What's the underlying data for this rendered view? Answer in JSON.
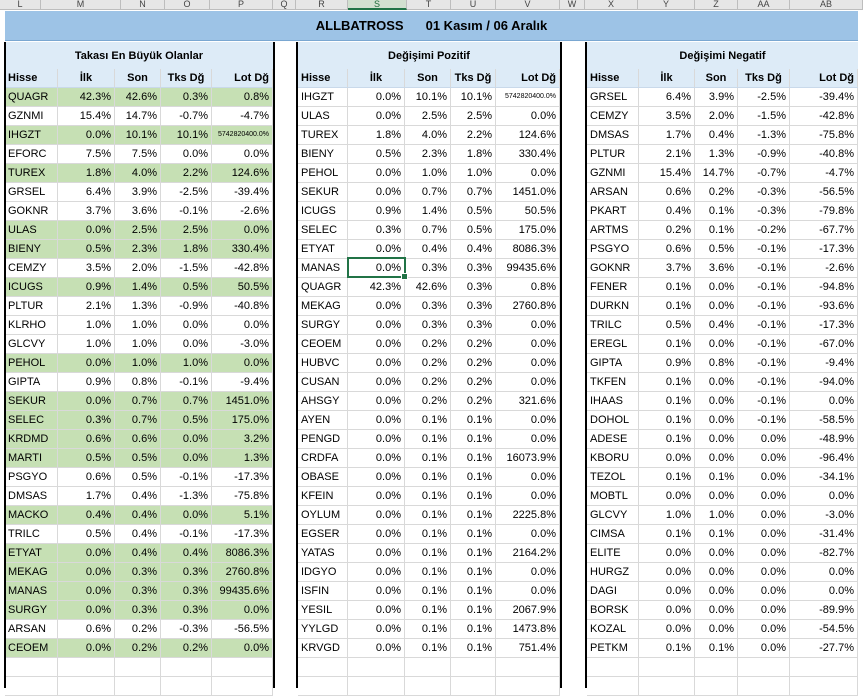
{
  "column_headers": [
    "L",
    "M",
    "N",
    "O",
    "P",
    "Q",
    "R",
    "S",
    "T",
    "U",
    "V",
    "W",
    "X",
    "Y",
    "Z",
    "AA",
    "AB"
  ],
  "selected_column": "S",
  "title": {
    "name": "ALLBATROSS",
    "period": "01 Kasım / 06 Aralık"
  },
  "headers": {
    "hisse": "Hisse",
    "ilk": "İlk",
    "son": "Son",
    "tks": "Tks Dğ",
    "lot": "Lot  Dğ"
  },
  "panels": [
    {
      "title": "Takası En Büyük Olanlar",
      "rows": [
        {
          "h": "QUAGR",
          "ilk": "42.3%",
          "son": "42.6%",
          "tks": "0.3%",
          "lot": "0.8%",
          "green": true
        },
        {
          "h": "GZNMI",
          "ilk": "15.4%",
          "son": "14.7%",
          "tks": "-0.7%",
          "lot": "-4.7%",
          "green": false
        },
        {
          "h": "IHGZT",
          "ilk": "0.0%",
          "son": "10.1%",
          "tks": "10.1%",
          "lot": "5742820400.0%",
          "green": true
        },
        {
          "h": "EFORC",
          "ilk": "7.5%",
          "son": "7.5%",
          "tks": "0.0%",
          "lot": "0.0%",
          "green": false
        },
        {
          "h": "TUREX",
          "ilk": "1.8%",
          "son": "4.0%",
          "tks": "2.2%",
          "lot": "124.6%",
          "green": true
        },
        {
          "h": "GRSEL",
          "ilk": "6.4%",
          "son": "3.9%",
          "tks": "-2.5%",
          "lot": "-39.4%",
          "green": false
        },
        {
          "h": "GOKNR",
          "ilk": "3.7%",
          "son": "3.6%",
          "tks": "-0.1%",
          "lot": "-2.6%",
          "green": false
        },
        {
          "h": "ULAS",
          "ilk": "0.0%",
          "son": "2.5%",
          "tks": "2.5%",
          "lot": "0.0%",
          "green": true
        },
        {
          "h": "BIENY",
          "ilk": "0.5%",
          "son": "2.3%",
          "tks": "1.8%",
          "lot": "330.4%",
          "green": true
        },
        {
          "h": "CEMZY",
          "ilk": "3.5%",
          "son": "2.0%",
          "tks": "-1.5%",
          "lot": "-42.8%",
          "green": false
        },
        {
          "h": "ICUGS",
          "ilk": "0.9%",
          "son": "1.4%",
          "tks": "0.5%",
          "lot": "50.5%",
          "green": true
        },
        {
          "h": "PLTUR",
          "ilk": "2.1%",
          "son": "1.3%",
          "tks": "-0.9%",
          "lot": "-40.8%",
          "green": false
        },
        {
          "h": "KLRHO",
          "ilk": "1.0%",
          "son": "1.0%",
          "tks": "0.0%",
          "lot": "0.0%",
          "green": false
        },
        {
          "h": "GLCVY",
          "ilk": "1.0%",
          "son": "1.0%",
          "tks": "0.0%",
          "lot": "-3.0%",
          "green": false
        },
        {
          "h": "PEHOL",
          "ilk": "0.0%",
          "son": "1.0%",
          "tks": "1.0%",
          "lot": "0.0%",
          "green": true
        },
        {
          "h": "GIPTA",
          "ilk": "0.9%",
          "son": "0.8%",
          "tks": "-0.1%",
          "lot": "-9.4%",
          "green": false
        },
        {
          "h": "SEKUR",
          "ilk": "0.0%",
          "son": "0.7%",
          "tks": "0.7%",
          "lot": "1451.0%",
          "green": true
        },
        {
          "h": "SELEC",
          "ilk": "0.3%",
          "son": "0.7%",
          "tks": "0.5%",
          "lot": "175.0%",
          "green": true
        },
        {
          "h": "KRDMD",
          "ilk": "0.6%",
          "son": "0.6%",
          "tks": "0.0%",
          "lot": "3.2%",
          "green": true
        },
        {
          "h": "MARTI",
          "ilk": "0.5%",
          "son": "0.5%",
          "tks": "0.0%",
          "lot": "1.3%",
          "green": true
        },
        {
          "h": "PSGYO",
          "ilk": "0.6%",
          "son": "0.5%",
          "tks": "-0.1%",
          "lot": "-17.3%",
          "green": false
        },
        {
          "h": "DMSAS",
          "ilk": "1.7%",
          "son": "0.4%",
          "tks": "-1.3%",
          "lot": "-75.8%",
          "green": false
        },
        {
          "h": "MACKO",
          "ilk": "0.4%",
          "son": "0.4%",
          "tks": "0.0%",
          "lot": "5.1%",
          "green": true
        },
        {
          "h": "TRILC",
          "ilk": "0.5%",
          "son": "0.4%",
          "tks": "-0.1%",
          "lot": "-17.3%",
          "green": false
        },
        {
          "h": "ETYAT",
          "ilk": "0.0%",
          "son": "0.4%",
          "tks": "0.4%",
          "lot": "8086.3%",
          "green": true
        },
        {
          "h": "MEKAG",
          "ilk": "0.0%",
          "son": "0.3%",
          "tks": "0.3%",
          "lot": "2760.8%",
          "green": true
        },
        {
          "h": "MANAS",
          "ilk": "0.0%",
          "son": "0.3%",
          "tks": "0.3%",
          "lot": "99435.6%",
          "green": true
        },
        {
          "h": "SURGY",
          "ilk": "0.0%",
          "son": "0.3%",
          "tks": "0.3%",
          "lot": "0.0%",
          "green": true
        },
        {
          "h": "ARSAN",
          "ilk": "0.6%",
          "son": "0.2%",
          "tks": "-0.3%",
          "lot": "-56.5%",
          "green": false
        },
        {
          "h": "CEOEM",
          "ilk": "0.0%",
          "son": "0.2%",
          "tks": "0.2%",
          "lot": "0.0%",
          "green": true
        }
      ]
    },
    {
      "title": "Değişimi Pozitif",
      "rows": [
        {
          "h": "IHGZT",
          "ilk": "0.0%",
          "son": "10.1%",
          "tks": "10.1%",
          "lot": "5742820400.0%"
        },
        {
          "h": "ULAS",
          "ilk": "0.0%",
          "son": "2.5%",
          "tks": "2.5%",
          "lot": "0.0%"
        },
        {
          "h": "TUREX",
          "ilk": "1.8%",
          "son": "4.0%",
          "tks": "2.2%",
          "lot": "124.6%"
        },
        {
          "h": "BIENY",
          "ilk": "0.5%",
          "son": "2.3%",
          "tks": "1.8%",
          "lot": "330.4%"
        },
        {
          "h": "PEHOL",
          "ilk": "0.0%",
          "son": "1.0%",
          "tks": "1.0%",
          "lot": "0.0%"
        },
        {
          "h": "SEKUR",
          "ilk": "0.0%",
          "son": "0.7%",
          "tks": "0.7%",
          "lot": "1451.0%"
        },
        {
          "h": "ICUGS",
          "ilk": "0.9%",
          "son": "1.4%",
          "tks": "0.5%",
          "lot": "50.5%"
        },
        {
          "h": "SELEC",
          "ilk": "0.3%",
          "son": "0.7%",
          "tks": "0.5%",
          "lot": "175.0%"
        },
        {
          "h": "ETYAT",
          "ilk": "0.0%",
          "son": "0.4%",
          "tks": "0.4%",
          "lot": "8086.3%"
        },
        {
          "h": "MANAS",
          "ilk": "0.0%",
          "son": "0.3%",
          "tks": "0.3%",
          "lot": "99435.6%"
        },
        {
          "h": "QUAGR",
          "ilk": "42.3%",
          "son": "42.6%",
          "tks": "0.3%",
          "lot": "0.8%"
        },
        {
          "h": "MEKAG",
          "ilk": "0.0%",
          "son": "0.3%",
          "tks": "0.3%",
          "lot": "2760.8%"
        },
        {
          "h": "SURGY",
          "ilk": "0.0%",
          "son": "0.3%",
          "tks": "0.3%",
          "lot": "0.0%"
        },
        {
          "h": "CEOEM",
          "ilk": "0.0%",
          "son": "0.2%",
          "tks": "0.2%",
          "lot": "0.0%"
        },
        {
          "h": "HUBVC",
          "ilk": "0.0%",
          "son": "0.2%",
          "tks": "0.2%",
          "lot": "0.0%"
        },
        {
          "h": "CUSAN",
          "ilk": "0.0%",
          "son": "0.2%",
          "tks": "0.2%",
          "lot": "0.0%"
        },
        {
          "h": "AHSGY",
          "ilk": "0.0%",
          "son": "0.2%",
          "tks": "0.2%",
          "lot": "321.6%"
        },
        {
          "h": "AYEN",
          "ilk": "0.0%",
          "son": "0.1%",
          "tks": "0.1%",
          "lot": "0.0%"
        },
        {
          "h": "PENGD",
          "ilk": "0.0%",
          "son": "0.1%",
          "tks": "0.1%",
          "lot": "0.0%"
        },
        {
          "h": "CRDFA",
          "ilk": "0.0%",
          "son": "0.1%",
          "tks": "0.1%",
          "lot": "16073.9%"
        },
        {
          "h": "OBASE",
          "ilk": "0.0%",
          "son": "0.1%",
          "tks": "0.1%",
          "lot": "0.0%"
        },
        {
          "h": "KFEIN",
          "ilk": "0.0%",
          "son": "0.1%",
          "tks": "0.1%",
          "lot": "0.0%"
        },
        {
          "h": "OYLUM",
          "ilk": "0.0%",
          "son": "0.1%",
          "tks": "0.1%",
          "lot": "2225.8%"
        },
        {
          "h": "EGSER",
          "ilk": "0.0%",
          "son": "0.1%",
          "tks": "0.1%",
          "lot": "0.0%"
        },
        {
          "h": "YATAS",
          "ilk": "0.0%",
          "son": "0.1%",
          "tks": "0.1%",
          "lot": "2164.2%"
        },
        {
          "h": "IDGYO",
          "ilk": "0.0%",
          "son": "0.1%",
          "tks": "0.1%",
          "lot": "0.0%"
        },
        {
          "h": "ISFIN",
          "ilk": "0.0%",
          "son": "0.1%",
          "tks": "0.1%",
          "lot": "0.0%"
        },
        {
          "h": "YESIL",
          "ilk": "0.0%",
          "son": "0.1%",
          "tks": "0.1%",
          "lot": "2067.9%"
        },
        {
          "h": "YYLGD",
          "ilk": "0.0%",
          "son": "0.1%",
          "tks": "0.1%",
          "lot": "1473.8%"
        },
        {
          "h": "KRVGD",
          "ilk": "0.0%",
          "son": "0.1%",
          "tks": "0.1%",
          "lot": "751.4%"
        }
      ]
    },
    {
      "title": "Değişimi Negatif",
      "rows": [
        {
          "h": "GRSEL",
          "ilk": "6.4%",
          "son": "3.9%",
          "tks": "-2.5%",
          "lot": "-39.4%"
        },
        {
          "h": "CEMZY",
          "ilk": "3.5%",
          "son": "2.0%",
          "tks": "-1.5%",
          "lot": "-42.8%"
        },
        {
          "h": "DMSAS",
          "ilk": "1.7%",
          "son": "0.4%",
          "tks": "-1.3%",
          "lot": "-75.8%"
        },
        {
          "h": "PLTUR",
          "ilk": "2.1%",
          "son": "1.3%",
          "tks": "-0.9%",
          "lot": "-40.8%"
        },
        {
          "h": "GZNMI",
          "ilk": "15.4%",
          "son": "14.7%",
          "tks": "-0.7%",
          "lot": "-4.7%"
        },
        {
          "h": "ARSAN",
          "ilk": "0.6%",
          "son": "0.2%",
          "tks": "-0.3%",
          "lot": "-56.5%"
        },
        {
          "h": "PKART",
          "ilk": "0.4%",
          "son": "0.1%",
          "tks": "-0.3%",
          "lot": "-79.8%"
        },
        {
          "h": "ARTMS",
          "ilk": "0.2%",
          "son": "0.1%",
          "tks": "-0.2%",
          "lot": "-67.7%"
        },
        {
          "h": "PSGYO",
          "ilk": "0.6%",
          "son": "0.5%",
          "tks": "-0.1%",
          "lot": "-17.3%"
        },
        {
          "h": "GOKNR",
          "ilk": "3.7%",
          "son": "3.6%",
          "tks": "-0.1%",
          "lot": "-2.6%"
        },
        {
          "h": "FENER",
          "ilk": "0.1%",
          "son": "0.0%",
          "tks": "-0.1%",
          "lot": "-94.8%"
        },
        {
          "h": "DURKN",
          "ilk": "0.1%",
          "son": "0.0%",
          "tks": "-0.1%",
          "lot": "-93.6%"
        },
        {
          "h": "TRILC",
          "ilk": "0.5%",
          "son": "0.4%",
          "tks": "-0.1%",
          "lot": "-17.3%"
        },
        {
          "h": "EREGL",
          "ilk": "0.1%",
          "son": "0.0%",
          "tks": "-0.1%",
          "lot": "-67.0%"
        },
        {
          "h": "GIPTA",
          "ilk": "0.9%",
          "son": "0.8%",
          "tks": "-0.1%",
          "lot": "-9.4%"
        },
        {
          "h": "TKFEN",
          "ilk": "0.1%",
          "son": "0.0%",
          "tks": "-0.1%",
          "lot": "-94.0%"
        },
        {
          "h": "IHAAS",
          "ilk": "0.1%",
          "son": "0.0%",
          "tks": "-0.1%",
          "lot": "0.0%"
        },
        {
          "h": "DOHOL",
          "ilk": "0.1%",
          "son": "0.0%",
          "tks": "-0.1%",
          "lot": "-58.5%"
        },
        {
          "h": "ADESE",
          "ilk": "0.1%",
          "son": "0.0%",
          "tks": "0.0%",
          "lot": "-48.9%"
        },
        {
          "h": "KBORU",
          "ilk": "0.0%",
          "son": "0.0%",
          "tks": "0.0%",
          "lot": "-96.4%"
        },
        {
          "h": "TEZOL",
          "ilk": "0.1%",
          "son": "0.1%",
          "tks": "0.0%",
          "lot": "-34.1%"
        },
        {
          "h": "MOBTL",
          "ilk": "0.0%",
          "son": "0.0%",
          "tks": "0.0%",
          "lot": "0.0%"
        },
        {
          "h": "GLCVY",
          "ilk": "1.0%",
          "son": "1.0%",
          "tks": "0.0%",
          "lot": "-3.0%"
        },
        {
          "h": "CIMSA",
          "ilk": "0.1%",
          "son": "0.1%",
          "tks": "0.0%",
          "lot": "-31.4%"
        },
        {
          "h": "ELITE",
          "ilk": "0.0%",
          "son": "0.0%",
          "tks": "0.0%",
          "lot": "-82.7%"
        },
        {
          "h": "HURGZ",
          "ilk": "0.0%",
          "son": "0.0%",
          "tks": "0.0%",
          "lot": "0.0%"
        },
        {
          "h": "DAGI",
          "ilk": "0.0%",
          "son": "0.0%",
          "tks": "0.0%",
          "lot": "0.0%"
        },
        {
          "h": "BORSK",
          "ilk": "0.0%",
          "son": "0.0%",
          "tks": "0.0%",
          "lot": "-89.9%"
        },
        {
          "h": "KOZAL",
          "ilk": "0.0%",
          "son": "0.0%",
          "tks": "0.0%",
          "lot": "-54.5%"
        },
        {
          "h": "PETKM",
          "ilk": "0.1%",
          "son": "0.1%",
          "tks": "0.0%",
          "lot": "-27.7%"
        }
      ]
    }
  ],
  "colors": {
    "title_bg": "#9dc3e6",
    "header_bg": "#ddebf7",
    "highlight_green": "#c6e0b4",
    "selection": "#217346"
  }
}
